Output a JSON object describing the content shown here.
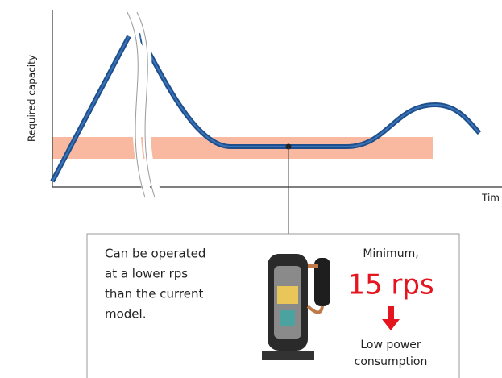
{
  "axes": {
    "y_label": "Required capacity",
    "x_label": "Tim"
  },
  "callout": {
    "description_lines": [
      "Can be operated",
      "at a lower rps",
      "than the current",
      "model."
    ],
    "minimum_label": "Minimum,",
    "minimum_value": "15 rps",
    "result_lines": [
      "Low power",
      "consumption"
    ]
  }
}
